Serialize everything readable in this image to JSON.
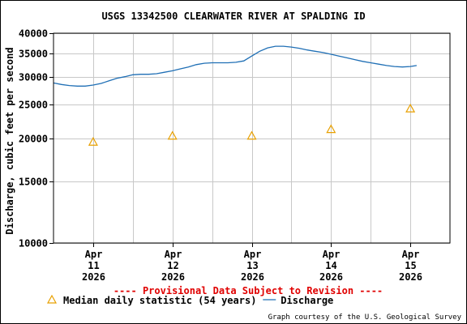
{
  "chart_data": {
    "type": "line",
    "title": "USGS 13342500 CLEARWATER RIVER AT SPALDING ID",
    "ylabel": "Discharge, cubic feet per second",
    "y_scale": "log",
    "ylim": [
      10000,
      40000
    ],
    "y_ticks": [
      {
        "value": 10000,
        "label": "10000"
      },
      {
        "value": 15000,
        "label": "15000"
      },
      {
        "value": 20000,
        "label": "20000"
      },
      {
        "value": 25000,
        "label": "25000"
      },
      {
        "value": 30000,
        "label": "30000"
      },
      {
        "value": 35000,
        "label": "35000"
      },
      {
        "value": 40000,
        "label": "40000"
      }
    ],
    "xlim": [
      10.5,
      15.5
    ],
    "x_ticks": [
      {
        "value": 11,
        "month": "Apr",
        "day": "11",
        "year": "2026"
      },
      {
        "value": 12,
        "month": "Apr",
        "day": "12",
        "year": "2026"
      },
      {
        "value": 13,
        "month": "Apr",
        "day": "13",
        "year": "2026"
      },
      {
        "value": 14,
        "month": "Apr",
        "day": "14",
        "year": "2026"
      },
      {
        "value": 15,
        "month": "Apr",
        "day": "15",
        "year": "2026"
      }
    ],
    "grid": true,
    "series": [
      {
        "name": "Discharge",
        "kind": "line",
        "color": "#1f6fb5",
        "points": [
          [
            10.5,
            28800
          ],
          [
            10.6,
            28500
          ],
          [
            10.7,
            28300
          ],
          [
            10.8,
            28200
          ],
          [
            10.9,
            28200
          ],
          [
            11.0,
            28400
          ],
          [
            11.1,
            28700
          ],
          [
            11.2,
            29200
          ],
          [
            11.3,
            29700
          ],
          [
            11.4,
            30000
          ],
          [
            11.5,
            30400
          ],
          [
            11.6,
            30500
          ],
          [
            11.7,
            30500
          ],
          [
            11.8,
            30600
          ],
          [
            11.9,
            30900
          ],
          [
            12.0,
            31200
          ],
          [
            12.1,
            31600
          ],
          [
            12.2,
            32000
          ],
          [
            12.3,
            32500
          ],
          [
            12.4,
            32800
          ],
          [
            12.5,
            32900
          ],
          [
            12.6,
            32900
          ],
          [
            12.7,
            32900
          ],
          [
            12.8,
            33000
          ],
          [
            12.9,
            33300
          ],
          [
            13.0,
            34400
          ],
          [
            13.1,
            35500
          ],
          [
            13.2,
            36300
          ],
          [
            13.3,
            36700
          ],
          [
            13.4,
            36700
          ],
          [
            13.5,
            36500
          ],
          [
            13.6,
            36200
          ],
          [
            13.7,
            35800
          ],
          [
            13.8,
            35500
          ],
          [
            13.9,
            35200
          ],
          [
            14.0,
            34800
          ],
          [
            14.1,
            34400
          ],
          [
            14.2,
            34000
          ],
          [
            14.3,
            33600
          ],
          [
            14.4,
            33200
          ],
          [
            14.5,
            32900
          ],
          [
            14.6,
            32600
          ],
          [
            14.7,
            32300
          ],
          [
            14.8,
            32100
          ],
          [
            14.9,
            32000
          ],
          [
            15.0,
            32100
          ],
          [
            15.08,
            32300
          ]
        ]
      },
      {
        "name": "Median daily statistic (54 years)",
        "kind": "marker",
        "marker": "triangle",
        "color": "#e8a000",
        "points": [
          [
            11,
            19500
          ],
          [
            12,
            20300
          ],
          [
            13,
            20300
          ],
          [
            14,
            21200
          ],
          [
            15,
            24300
          ]
        ]
      }
    ],
    "annotations": {
      "provisional": "---- Provisional Data Subject to Revision ----",
      "provisional_color": "#e00000",
      "credit": "Graph courtesy of the U.S. Geological Survey"
    },
    "legend": {
      "placement": "bottom",
      "entries": [
        {
          "label": "Median daily statistic (54 years)",
          "symbol": "triangle",
          "color": "#e8a000"
        },
        {
          "label": "Discharge",
          "symbol": "line",
          "color": "#1f6fb5"
        }
      ]
    }
  }
}
